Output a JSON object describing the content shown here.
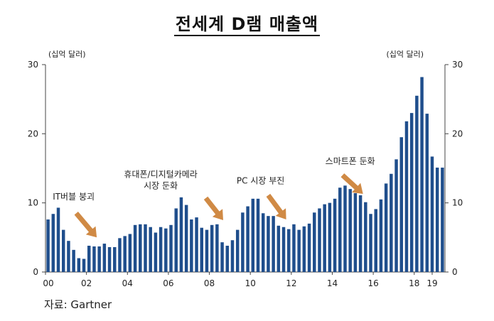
{
  "chart_data": {
    "type": "bar",
    "title": "전세계 D램 매출액",
    "ylabel_left": "(십억 달러)",
    "ylabel_right": "(십억 달러)",
    "ylim": [
      0,
      30
    ],
    "yticks": [
      0,
      10,
      20,
      30
    ],
    "xticks": [
      "00",
      "02",
      "04",
      "06",
      "08",
      "10",
      "12",
      "14",
      "16",
      "18",
      "19"
    ],
    "xtick_positions": [
      0,
      8,
      16,
      24,
      32,
      40,
      48,
      56,
      64,
      72,
      75.5
    ],
    "color": "#1f4e8c",
    "values": [
      7.6,
      8.4,
      9.3,
      6.1,
      4.5,
      3.2,
      2.0,
      1.9,
      3.8,
      3.7,
      3.7,
      4.1,
      3.6,
      3.6,
      4.9,
      5.2,
      5.5,
      6.8,
      6.9,
      6.9,
      6.5,
      5.7,
      6.5,
      6.3,
      6.8,
      9.2,
      10.8,
      9.7,
      7.6,
      7.9,
      6.4,
      6.1,
      6.8,
      6.9,
      4.3,
      3.8,
      4.6,
      6.1,
      8.6,
      9.5,
      10.6,
      10.6,
      8.5,
      8.1,
      8.1,
      6.7,
      6.5,
      6.2,
      6.9,
      6.1,
      6.6,
      7.0,
      8.6,
      9.2,
      9.8,
      10.0,
      10.6,
      12.2,
      12.5,
      12.0,
      11.4,
      11.1,
      10.1,
      8.4,
      9.1,
      10.5,
      12.8,
      14.2,
      16.3,
      19.5,
      21.8,
      23.0,
      25.5,
      28.2,
      22.9,
      16.7,
      15.1,
      15.1
    ],
    "annotations": [
      {
        "text": "IT버블 붕괴",
        "x": 5.5,
        "y": 10.5,
        "arrow_from": [
          6.0,
          8.5
        ],
        "arrow_to": [
          10.0,
          5.0
        ]
      },
      {
        "text": "휴대폰/디지털카메라",
        "text2": "시장 둔화",
        "x": 22.5,
        "y": 13.7,
        "arrow_from": [
          31.3,
          10.7
        ],
        "arrow_to": [
          34.7,
          7.5
        ]
      },
      {
        "text": "PC 시장 부진",
        "x": 42.0,
        "y": 12.8,
        "arrow_from": [
          43.5,
          11.1
        ],
        "arrow_to": [
          47.0,
          7.6
        ]
      },
      {
        "text": "스마트폰 둔화",
        "x": 59.5,
        "y": 15.6,
        "arrow_from": [
          58.0,
          14.0
        ],
        "arrow_to": [
          62.0,
          11.3
        ]
      }
    ],
    "arrow_color": "#d08a45",
    "grid": false,
    "legend": "none"
  },
  "footer": {
    "source": "자료: Gartner"
  }
}
